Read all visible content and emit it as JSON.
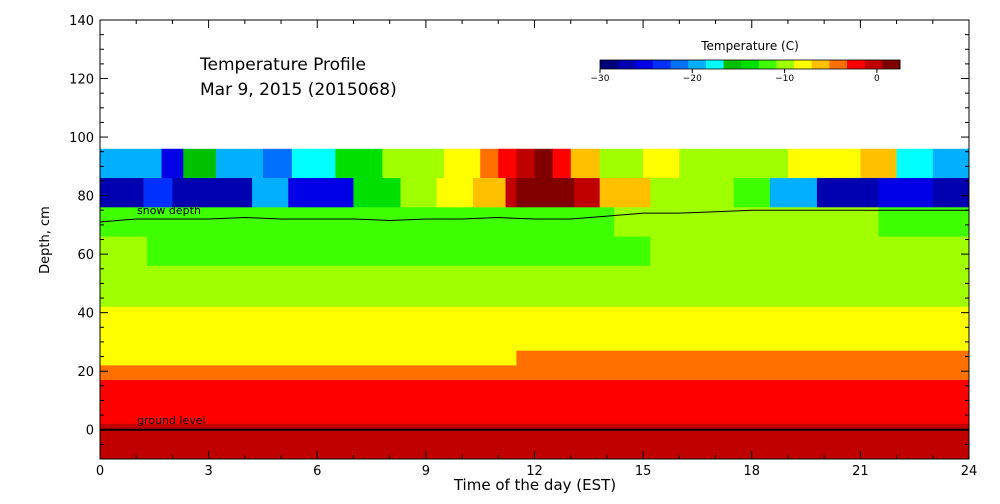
{
  "chart_data": {
    "type": "heatmap",
    "title_line1": "Temperature Profile",
    "title_line2": "Mar  9, 2015 (2015068)",
    "xlabel": "Time of the day (EST)",
    "ylabel": "Depth, cm",
    "xlim": [
      0,
      24
    ],
    "ylim": [
      -10,
      140
    ],
    "x_ticks": [
      0,
      3,
      6,
      9,
      12,
      15,
      18,
      21,
      24
    ],
    "y_ticks": [
      0,
      20,
      40,
      60,
      80,
      100,
      120,
      140
    ],
    "colorbar": {
      "title": "Temperature (C)",
      "min": -30,
      "max": 2.5,
      "ticks": [
        -30,
        -20,
        -10,
        0
      ],
      "tick_labels": [
        "−30",
        "−20",
        "−10",
        "0"
      ],
      "colors": [
        "#00007a",
        "#0000b0",
        "#0000e6",
        "#0030ff",
        "#0070ff",
        "#00b0ff",
        "#00ffff",
        "#00c000",
        "#00e000",
        "#40ff00",
        "#a0ff00",
        "#ffff00",
        "#ffc000",
        "#ff7000",
        "#ff0000",
        "#c00000",
        "#800000"
      ]
    },
    "annotations": {
      "snow_depth": "snow depth",
      "ground_level": "ground level"
    },
    "ground_level_depth": 0,
    "snow_depth_series": {
      "x": [
        0,
        1,
        2,
        3,
        4,
        5,
        6,
        7,
        8,
        9,
        10,
        11,
        12,
        13,
        14,
        15,
        16,
        17,
        18,
        19,
        20,
        21,
        22,
        23,
        24
      ],
      "y": [
        71,
        72,
        72,
        72,
        72.5,
        72,
        72,
        72,
        71.5,
        72,
        72,
        72.5,
        72,
        72,
        73,
        74,
        74,
        74.5,
        75,
        75,
        75,
        75,
        75,
        75,
        75
      ]
    },
    "layers": [
      {
        "y0": 86,
        "y1": 96,
        "segments": [
          [
            0,
            1.7,
            -20
          ],
          [
            1.7,
            2.3,
            -25
          ],
          [
            2.3,
            3.2,
            -15
          ],
          [
            3.2,
            4.5,
            -20
          ],
          [
            4.5,
            5.3,
            -22
          ],
          [
            5.3,
            6.5,
            -18
          ],
          [
            6.5,
            7.8,
            -14
          ],
          [
            7.8,
            9.5,
            -9
          ],
          [
            9.5,
            10.5,
            -8
          ],
          [
            10.5,
            11.0,
            -5
          ],
          [
            11.0,
            11.5,
            -3
          ],
          [
            11.5,
            12.0,
            -1
          ],
          [
            12.0,
            12.5,
            1
          ],
          [
            12.5,
            13.0,
            -3
          ],
          [
            13.0,
            13.8,
            -6
          ],
          [
            13.8,
            15.0,
            -9
          ],
          [
            15.0,
            16.0,
            -8
          ],
          [
            16.0,
            17.0,
            -9
          ],
          [
            17.0,
            19.0,
            -10
          ],
          [
            19.0,
            21.0,
            -8
          ],
          [
            21.0,
            22.0,
            -6
          ],
          [
            22.0,
            23.0,
            -17
          ],
          [
            23.0,
            24.0,
            -20
          ]
        ]
      },
      {
        "y0": 76,
        "y1": 86,
        "segments": [
          [
            0,
            1.2,
            -27
          ],
          [
            1.2,
            2.0,
            -24
          ],
          [
            2.0,
            4.2,
            -27
          ],
          [
            4.2,
            5.2,
            -20
          ],
          [
            5.2,
            7.0,
            -25
          ],
          [
            7.0,
            8.3,
            -14
          ],
          [
            8.3,
            9.3,
            -9
          ],
          [
            9.3,
            10.3,
            -8
          ],
          [
            10.3,
            11.2,
            -6
          ],
          [
            11.2,
            11.5,
            -1
          ],
          [
            11.5,
            12.3,
            1.5
          ],
          [
            12.3,
            13.1,
            2.5
          ],
          [
            13.1,
            13.8,
            -1
          ],
          [
            13.8,
            15.2,
            -6
          ],
          [
            15.2,
            16.0,
            -9
          ],
          [
            16.0,
            17.5,
            -10
          ],
          [
            17.5,
            18.5,
            -12
          ],
          [
            18.5,
            19.8,
            -20
          ],
          [
            19.8,
            21.5,
            -27
          ],
          [
            21.5,
            23.0,
            -25
          ],
          [
            23.0,
            24.0,
            -28
          ]
        ]
      },
      {
        "y0": 66,
        "y1": 76,
        "segments": [
          [
            0,
            5.8,
            -11
          ],
          [
            5.8,
            9.3,
            -12
          ],
          [
            9.3,
            14.2,
            -11
          ],
          [
            14.2,
            21.5,
            -10
          ],
          [
            21.5,
            24.0,
            -11
          ]
        ]
      },
      {
        "y0": 56,
        "y1": 66,
        "segments": [
          [
            0,
            1.3,
            -10
          ],
          [
            1.3,
            15.2,
            -11
          ],
          [
            15.2,
            24.0,
            -10
          ]
        ]
      },
      {
        "y0": 42,
        "y1": 56,
        "segments": [
          [
            0,
            24.0,
            -10
          ]
        ]
      },
      {
        "y0": 27,
        "y1": 42,
        "segments": [
          [
            0,
            24.0,
            -7.5
          ]
        ]
      },
      {
        "y0": 22,
        "y1": 27,
        "segments": [
          [
            0,
            11.5,
            -7.5
          ],
          [
            11.5,
            24.0,
            -4.5
          ]
        ]
      },
      {
        "y0": 17,
        "y1": 22,
        "segments": [
          [
            0,
            24.0,
            -4.5
          ]
        ]
      },
      {
        "y0": 7,
        "y1": 17,
        "segments": [
          [
            0,
            24.0,
            -3
          ]
        ]
      },
      {
        "y0": 2,
        "y1": 7,
        "segments": [
          [
            0,
            24.0,
            -1.5
          ]
        ]
      },
      {
        "y0": -10,
        "y1": 2,
        "segments": [
          [
            0,
            24.0,
            0
          ]
        ]
      }
    ]
  }
}
